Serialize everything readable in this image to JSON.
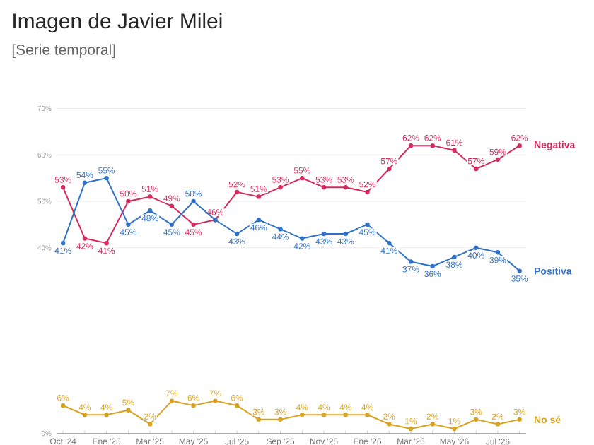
{
  "chart_data": {
    "type": "line",
    "title": "Imagen de Javier Milei",
    "subtitle": "[Serie temporal]",
    "categories": [
      "Oct '24",
      null,
      "Ene '25",
      null,
      "Mar '25",
      null,
      "May '25",
      null,
      "Jul '25",
      null,
      "Sep '25",
      null,
      "Nov '25",
      null,
      "Ene '26",
      null,
      "Mar '26",
      null,
      "May '26",
      null,
      "Jul '26",
      null
    ],
    "series": [
      {
        "name": "Negativa",
        "color": "#d42a5e",
        "values": [
          53,
          42,
          41,
          50,
          51,
          49,
          45,
          46,
          52,
          51,
          53,
          55,
          53,
          53,
          52,
          57,
          62,
          62,
          61,
          57,
          59,
          62
        ],
        "value_labels": [
          "53%",
          "42%",
          "41%",
          "50%",
          "51%",
          "49%",
          "45%",
          "46%",
          "52%",
          "51%",
          "53%",
          "55%",
          "53%",
          "53%",
          "52%",
          "57%",
          "62%",
          "62%",
          "61%",
          "57%",
          "59%",
          "62%"
        ]
      },
      {
        "name": "Positiva",
        "color": "#2f72c8",
        "values": [
          41,
          54,
          55,
          45,
          48,
          45,
          50,
          46,
          43,
          46,
          44,
          42,
          43,
          43,
          45,
          41,
          37,
          36,
          38,
          40,
          39,
          35
        ],
        "value_labels": [
          "41%",
          "54%",
          "55%",
          "45%",
          "48%",
          "45%",
          "50%",
          null,
          "43%",
          "46%",
          "44%",
          "42%",
          "43%",
          "43%",
          "45%",
          "41%",
          "37%",
          "36%",
          "38%",
          "40%",
          "39%",
          "35%"
        ]
      },
      {
        "name": "No sé",
        "color": "#d9a21f",
        "values": [
          6,
          4,
          4,
          5,
          2,
          7,
          6,
          7,
          6,
          3,
          3,
          4,
          4,
          4,
          4,
          2,
          1,
          2,
          1,
          3,
          2,
          3
        ],
        "value_labels": [
          "6%",
          "4%",
          "4%",
          "5%",
          "2%",
          "7%",
          "6%",
          "7%",
          "6%",
          "3%",
          "3%",
          "4%",
          "4%",
          "4%",
          "4%",
          "2%",
          "1%",
          "2%",
          "1%",
          "3%",
          "2%",
          "3%"
        ]
      }
    ],
    "ylim": [
      0,
      70
    ],
    "yticks": [
      {
        "value": 0,
        "label": "0%"
      },
      {
        "value": 40,
        "label": "40%"
      },
      {
        "value": 50,
        "label": "50%"
      },
      {
        "value": 60,
        "label": "60%"
      },
      {
        "value": 70,
        "label": "70%"
      }
    ],
    "grid": "y",
    "marker": "circle"
  }
}
